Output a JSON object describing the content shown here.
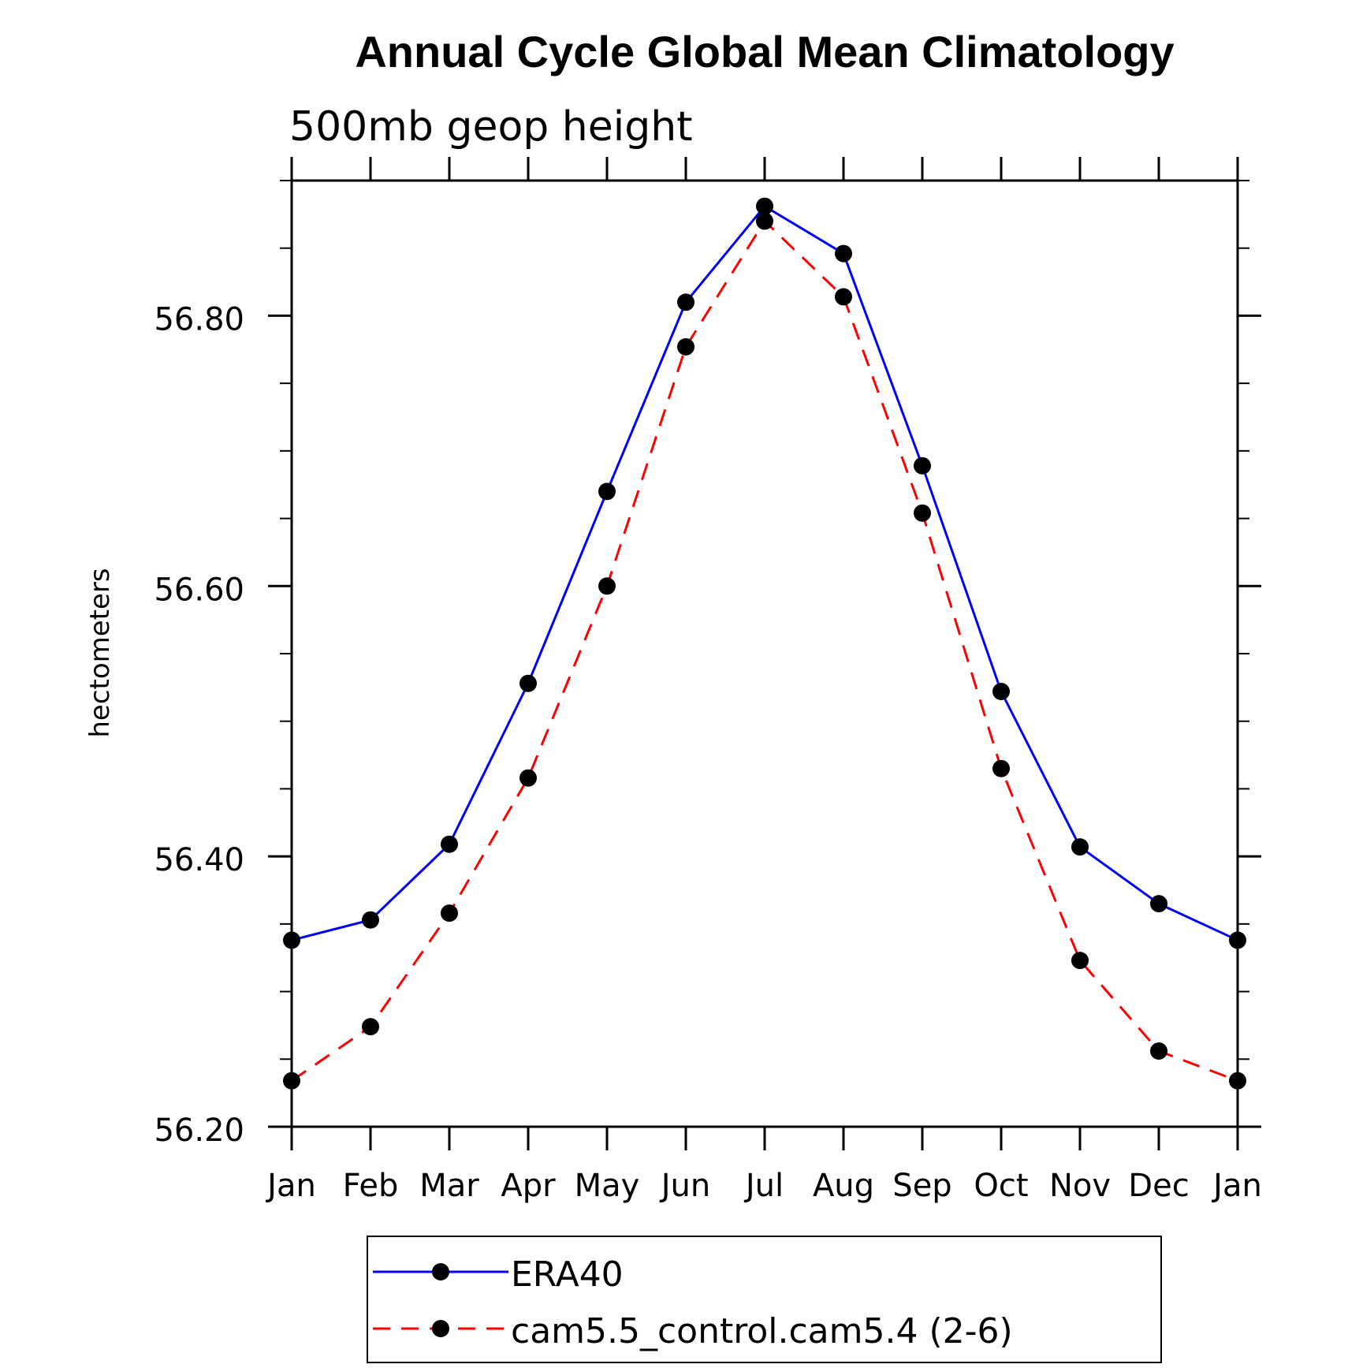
{
  "chart_data": {
    "type": "line",
    "title": "Annual Cycle Global Mean Climatology",
    "subtitle": "500mb geop height",
    "xlabel": "",
    "ylabel": "hectometers",
    "categories": [
      "Jan",
      "Feb",
      "Mar",
      "Apr",
      "May",
      "Jun",
      "Jul",
      "Aug",
      "Sep",
      "Oct",
      "Nov",
      "Dec",
      "Jan"
    ],
    "ylim": [
      56.2,
      56.9
    ],
    "yticks_major": [
      56.2,
      56.4,
      56.6,
      56.8
    ],
    "ytick_labels": [
      "56.20",
      "56.40",
      "56.60",
      "56.80"
    ],
    "ytick_minor_step": 0.05,
    "grid": false,
    "legend_position": "bottom-center",
    "series": [
      {
        "name": "ERA40",
        "color": "#0000ff",
        "dash": "solid",
        "marker": "filled-circle",
        "values": [
          56.338,
          56.353,
          56.409,
          56.528,
          56.67,
          56.81,
          56.881,
          56.846,
          56.689,
          56.522,
          56.407,
          56.365,
          56.338
        ]
      },
      {
        "name": "cam5.5_control.cam5.4 (2-6)",
        "color": "#ff0000",
        "dash": "dashed",
        "marker": "filled-circle",
        "values": [
          56.234,
          56.274,
          56.358,
          56.458,
          56.6,
          56.777,
          56.87,
          56.814,
          56.654,
          56.465,
          56.323,
          56.256,
          56.234
        ]
      }
    ]
  }
}
